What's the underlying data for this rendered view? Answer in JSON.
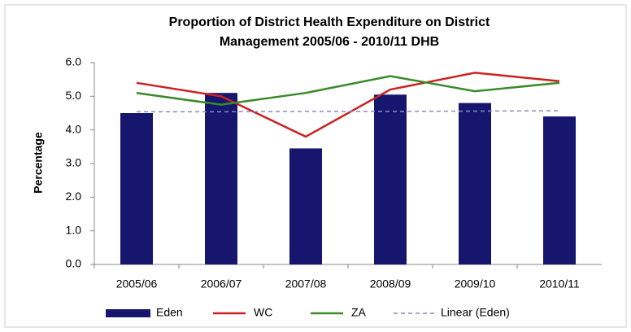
{
  "chart_data": {
    "type": "bar",
    "title": [
      "Proportion of District Health Expenditure on District",
      "Management 2005/06 - 2010/11 DHB"
    ],
    "y_label": "Percentage",
    "categories": [
      "2005/06",
      "2006/07",
      "2007/08",
      "2008/09",
      "2009/10",
      "2010/11"
    ],
    "series": [
      {
        "name": "Eden",
        "type": "bar",
        "color": "#16166e",
        "values": [
          4.5,
          5.1,
          3.45,
          5.05,
          4.8,
          4.4
        ]
      },
      {
        "name": "WC",
        "type": "line",
        "color": "#cc2222",
        "values": [
          5.4,
          5.0,
          3.8,
          5.2,
          5.7,
          5.45
        ]
      },
      {
        "name": "ZA",
        "type": "line",
        "color": "#3a8a2a",
        "values": [
          5.1,
          4.75,
          5.1,
          5.6,
          5.15,
          5.4
        ]
      },
      {
        "name": "Linear (Eden)",
        "type": "line",
        "dashed": true,
        "color": "#8888cc",
        "values": [
          4.54,
          4.54,
          4.55,
          4.55,
          4.56,
          4.57
        ]
      }
    ],
    "ylim": [
      0,
      6
    ],
    "yticks": [
      {
        "value": 0,
        "label": "0.0"
      },
      {
        "value": 1,
        "label": "1.0"
      },
      {
        "value": 2,
        "label": "2.0"
      },
      {
        "value": 3,
        "label": "3.0"
      },
      {
        "value": 4,
        "label": "4.0"
      },
      {
        "value": 5,
        "label": "5.0"
      },
      {
        "value": 6,
        "label": "6.0"
      }
    ],
    "legend": "bottom"
  }
}
